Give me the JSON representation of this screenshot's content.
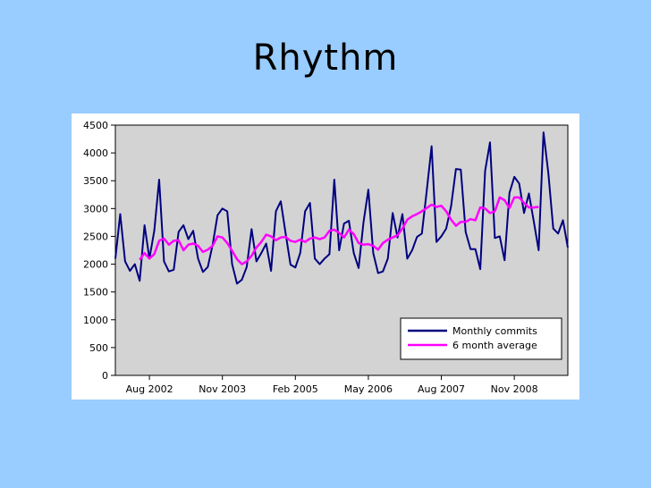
{
  "slide": {
    "title": "Rhythm"
  },
  "chart_data": {
    "type": "line",
    "title": "",
    "xlabel": "",
    "ylabel": "",
    "ylim": [
      0,
      4500
    ],
    "yticks": [
      0,
      500,
      1000,
      1500,
      2000,
      2500,
      3000,
      3500,
      4000,
      4500
    ],
    "x_start": "Jan 2002",
    "x_ticklabels": [
      {
        "label": "Aug 2002",
        "month_index": 7
      },
      {
        "label": "Nov 2003",
        "month_index": 22
      },
      {
        "label": "Feb 2005",
        "month_index": 37
      },
      {
        "label": "May 2006",
        "month_index": 52
      },
      {
        "label": "Aug 2007",
        "month_index": 67
      },
      {
        "label": "Nov 2008",
        "month_index": 82
      }
    ],
    "extra_tick_index": 97,
    "grid": false,
    "legend_position": "bottom-right",
    "background": "#d3d3d3",
    "series": [
      {
        "name": "Monthly commits",
        "color": "#000080",
        "values": [
          2100,
          2900,
          2050,
          1880,
          2000,
          1700,
          2700,
          2100,
          2600,
          3520,
          2050,
          1870,
          1900,
          2580,
          2700,
          2450,
          2600,
          2100,
          1860,
          1950,
          2350,
          2880,
          3000,
          2950,
          2000,
          1650,
          1720,
          1950,
          2630,
          2050,
          2200,
          2370,
          1880,
          2950,
          3130,
          2550,
          1990,
          1940,
          2200,
          2950,
          3100,
          2100,
          2000,
          2100,
          2180,
          3520,
          2250,
          2730,
          2780,
          2200,
          1930,
          2750,
          3340,
          2200,
          1840,
          1870,
          2100,
          2920,
          2480,
          2900,
          2100,
          2250,
          2490,
          2550,
          3320,
          4120,
          2400,
          2500,
          2640,
          3040,
          3710,
          3700,
          2580,
          2270,
          2270,
          1910,
          3680,
          4190,
          2470,
          2500,
          2070,
          3280,
          3570,
          3450,
          2920,
          3270,
          2770,
          2250,
          4370,
          3630,
          2640,
          2550,
          2790,
          2300
        ]
      },
      {
        "name": "6 month average",
        "color": "#ff00ff",
        "start_index": 5,
        "values": [
          2080,
          2200,
          2100,
          2180,
          2420,
          2460,
          2350,
          2420,
          2430,
          2250,
          2350,
          2370,
          2330,
          2220,
          2260,
          2330,
          2500,
          2480,
          2380,
          2240,
          2090,
          2000,
          2050,
          2150,
          2300,
          2400,
          2530,
          2500,
          2430,
          2480,
          2490,
          2420,
          2400,
          2440,
          2400,
          2460,
          2480,
          2450,
          2480,
          2600,
          2620,
          2560,
          2480,
          2620,
          2540,
          2380,
          2350,
          2360,
          2330,
          2260,
          2380,
          2440,
          2480,
          2520,
          2640,
          2800,
          2860,
          2900,
          2950,
          3010,
          3070,
          3030,
          3050,
          2950,
          2800,
          2690,
          2760,
          2760,
          2810,
          2790,
          3020,
          3000,
          2920,
          2950,
          3200,
          3150,
          3010,
          3200,
          3200,
          3100,
          3020,
          3020,
          3030
        ]
      }
    ]
  }
}
